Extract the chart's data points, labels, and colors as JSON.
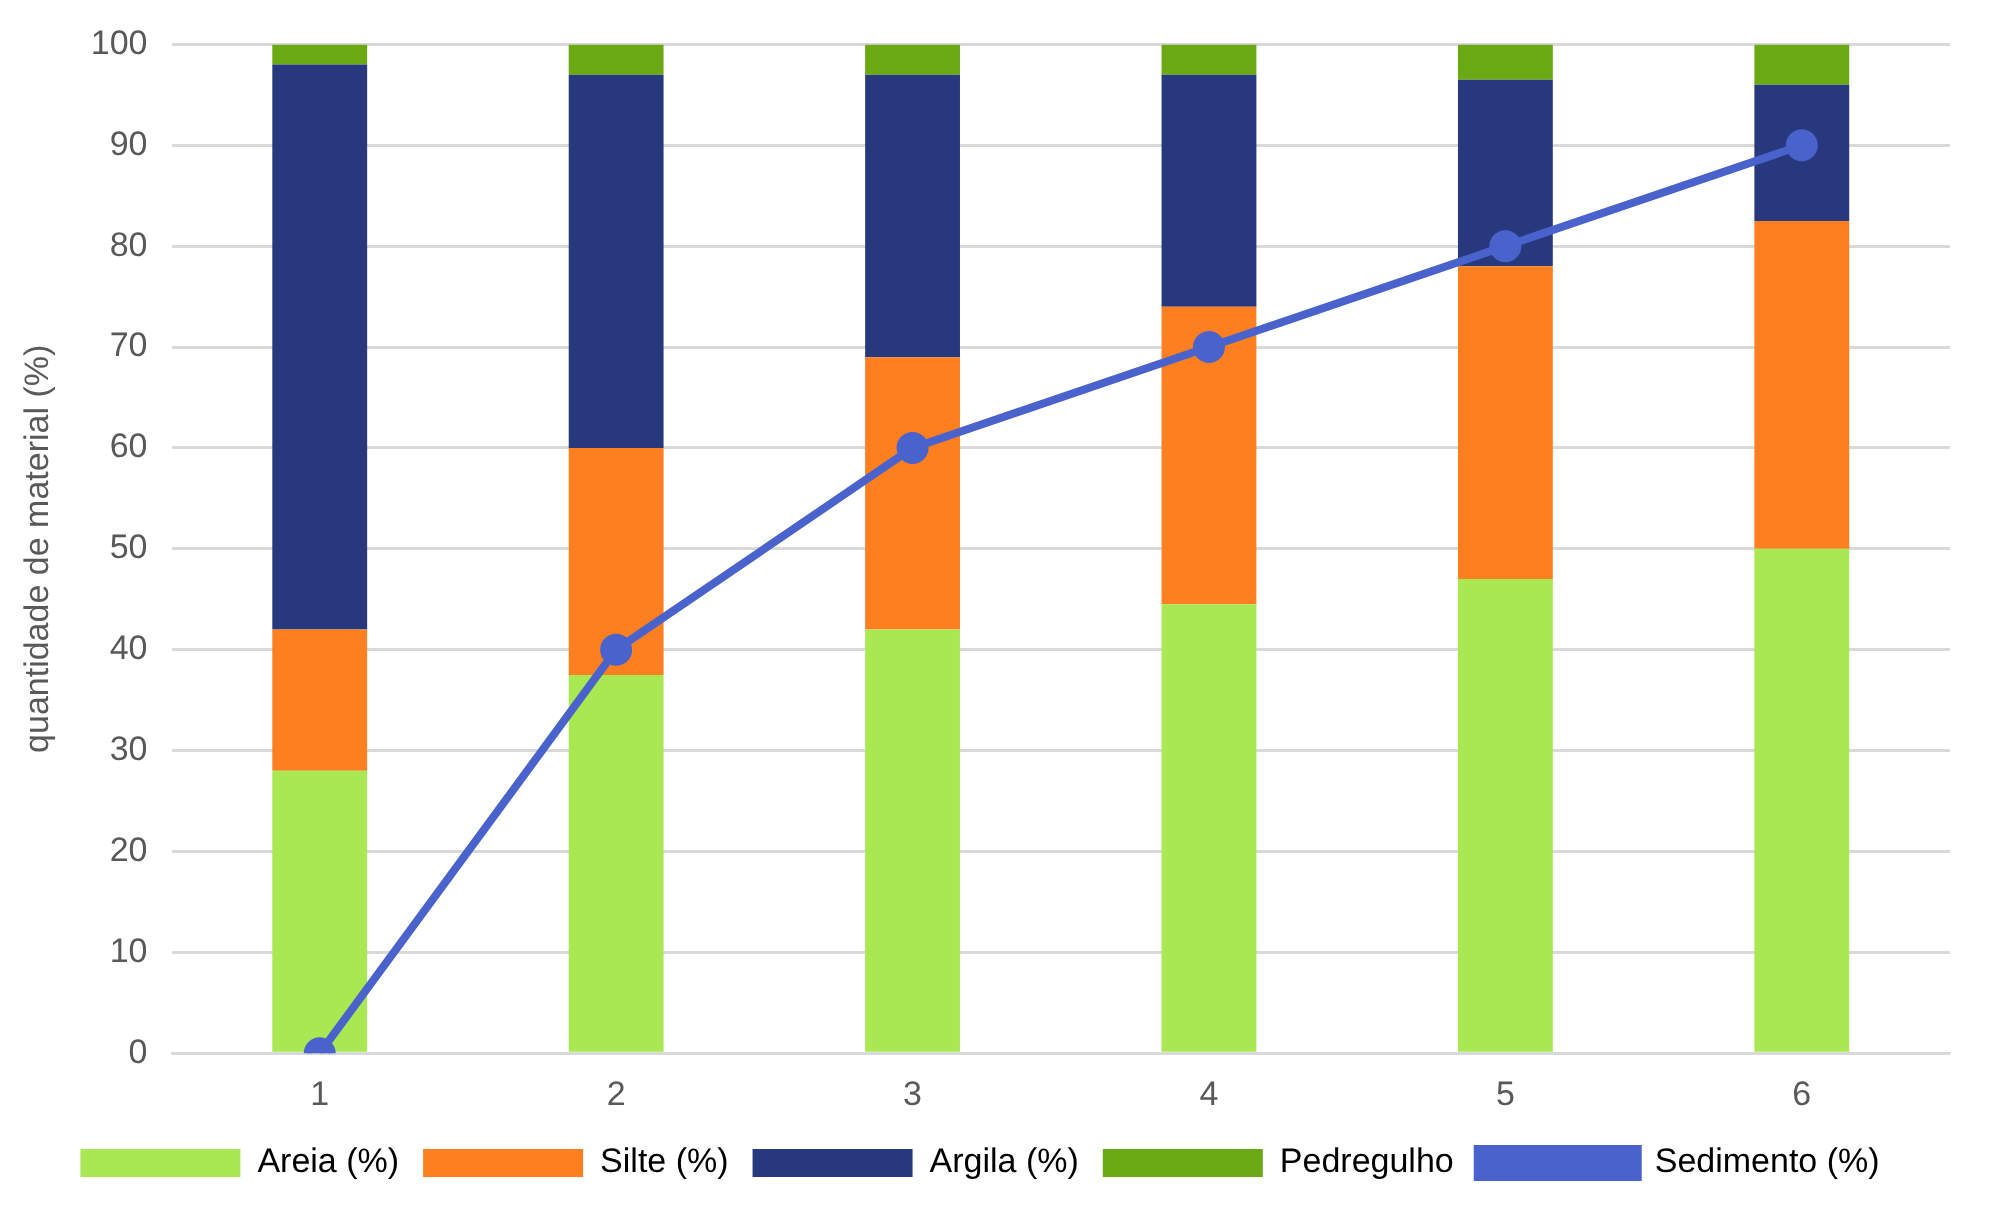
{
  "chart_data": {
    "type": "bar",
    "stacked": true,
    "ylabel": "quantidade de material (%)",
    "categories": [
      "1",
      "2",
      "3",
      "4",
      "5",
      "6"
    ],
    "series": [
      {
        "name": "Areia (%)",
        "color": "#a9e852",
        "values": [
          28,
          37.5,
          42,
          44.5,
          47,
          50
        ]
      },
      {
        "name": "Silte (%)",
        "color": "#fd7f20",
        "values": [
          14,
          22.5,
          27,
          29.5,
          31,
          32.5
        ]
      },
      {
        "name": "Argila (%)",
        "color": "#27397c",
        "values": [
          56,
          37,
          28,
          23,
          18.5,
          13.5
        ]
      },
      {
        "name": "Pedregulho",
        "color": "#6aa814",
        "values": [
          2,
          3,
          3,
          3,
          3.5,
          4
        ]
      },
      {
        "name": "Sedimento (%)",
        "type": "line",
        "color": "#4a63cc",
        "values": [
          0,
          40,
          60,
          70,
          80,
          90
        ]
      }
    ],
    "ylim": [
      0,
      100
    ],
    "yticks": [
      0,
      10,
      20,
      30,
      40,
      50,
      60,
      70,
      80,
      90,
      100
    ],
    "grid": "y",
    "legend": "bottom",
    "marker": "circle"
  }
}
